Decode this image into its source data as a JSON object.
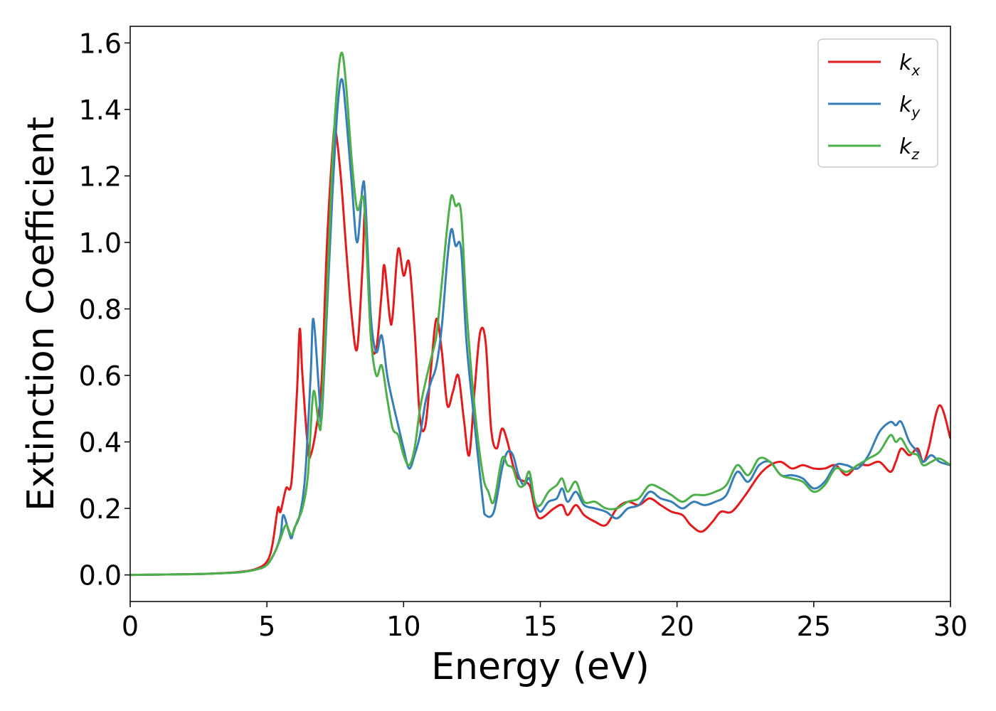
{
  "chart_data": {
    "type": "line",
    "xlabel": "Energy (eV)",
    "ylabel": "Extinction Coefficient",
    "xlim": [
      0,
      30
    ],
    "ylim": [
      -0.08,
      1.65
    ],
    "xticks": [
      0,
      5,
      10,
      15,
      20,
      25,
      30
    ],
    "xtick_labels": [
      "0",
      "5",
      "10",
      "15",
      "20",
      "25",
      "30"
    ],
    "yticks": [
      0.0,
      0.2,
      0.4,
      0.6,
      0.8,
      1.0,
      1.2,
      1.4,
      1.6
    ],
    "ytick_labels": [
      "0.0",
      "0.2",
      "0.4",
      "0.6",
      "0.8",
      "1.0",
      "1.2",
      "1.4",
      "1.6"
    ],
    "grid": false,
    "legend_position": "top-right",
    "series": [
      {
        "name": "k_x",
        "legend_base": "k",
        "legend_sub": "x",
        "color": "#e41a1c",
        "points": [
          [
            0,
            0.0
          ],
          [
            2,
            0.002
          ],
          [
            3,
            0.004
          ],
          [
            4,
            0.009
          ],
          [
            4.6,
            0.018
          ],
          [
            5.0,
            0.04
          ],
          [
            5.2,
            0.09
          ],
          [
            5.4,
            0.2
          ],
          [
            5.5,
            0.19
          ],
          [
            5.7,
            0.26
          ],
          [
            5.9,
            0.28
          ],
          [
            6.1,
            0.55
          ],
          [
            6.2,
            0.74
          ],
          [
            6.3,
            0.6
          ],
          [
            6.5,
            0.38
          ],
          [
            6.6,
            0.36
          ],
          [
            6.8,
            0.44
          ],
          [
            7.0,
            0.58
          ],
          [
            7.2,
            1.0
          ],
          [
            7.4,
            1.28
          ],
          [
            7.5,
            1.34
          ],
          [
            7.7,
            1.2
          ],
          [
            7.9,
            0.98
          ],
          [
            8.1,
            0.78
          ],
          [
            8.3,
            0.68
          ],
          [
            8.5,
            0.93
          ],
          [
            8.6,
            1.09
          ],
          [
            8.8,
            0.72
          ],
          [
            9.0,
            0.68
          ],
          [
            9.2,
            0.85
          ],
          [
            9.3,
            0.93
          ],
          [
            9.5,
            0.77
          ],
          [
            9.6,
            0.78
          ],
          [
            9.8,
            0.98
          ],
          [
            10.0,
            0.9
          ],
          [
            10.2,
            0.94
          ],
          [
            10.4,
            0.74
          ],
          [
            10.6,
            0.47
          ],
          [
            10.8,
            0.45
          ],
          [
            11.0,
            0.62
          ],
          [
            11.2,
            0.77
          ],
          [
            11.4,
            0.67
          ],
          [
            11.6,
            0.51
          ],
          [
            11.8,
            0.55
          ],
          [
            12.0,
            0.6
          ],
          [
            12.2,
            0.47
          ],
          [
            12.4,
            0.36
          ],
          [
            12.6,
            0.56
          ],
          [
            12.8,
            0.73
          ],
          [
            13.0,
            0.7
          ],
          [
            13.2,
            0.44
          ],
          [
            13.4,
            0.38
          ],
          [
            13.6,
            0.44
          ],
          [
            13.8,
            0.4
          ],
          [
            14.0,
            0.33
          ],
          [
            14.2,
            0.29
          ],
          [
            14.6,
            0.27
          ],
          [
            14.8,
            0.2
          ],
          [
            15.0,
            0.17
          ],
          [
            15.5,
            0.2
          ],
          [
            15.8,
            0.21
          ],
          [
            16.0,
            0.18
          ],
          [
            16.3,
            0.21
          ],
          [
            16.6,
            0.18
          ],
          [
            17.0,
            0.16
          ],
          [
            17.4,
            0.15
          ],
          [
            17.8,
            0.2
          ],
          [
            18.2,
            0.22
          ],
          [
            18.6,
            0.21
          ],
          [
            19.0,
            0.23
          ],
          [
            19.4,
            0.21
          ],
          [
            19.8,
            0.19
          ],
          [
            20.2,
            0.18
          ],
          [
            20.5,
            0.15
          ],
          [
            20.9,
            0.13
          ],
          [
            21.3,
            0.16
          ],
          [
            21.6,
            0.19
          ],
          [
            22.0,
            0.19
          ],
          [
            22.5,
            0.24
          ],
          [
            23.0,
            0.3
          ],
          [
            23.4,
            0.33
          ],
          [
            23.8,
            0.34
          ],
          [
            24.2,
            0.32
          ],
          [
            24.6,
            0.33
          ],
          [
            25.0,
            0.32
          ],
          [
            25.4,
            0.32
          ],
          [
            25.8,
            0.33
          ],
          [
            26.2,
            0.3
          ],
          [
            26.6,
            0.33
          ],
          [
            27.0,
            0.33
          ],
          [
            27.4,
            0.34
          ],
          [
            27.8,
            0.31
          ],
          [
            28.0,
            0.34
          ],
          [
            28.2,
            0.38
          ],
          [
            28.5,
            0.36
          ],
          [
            28.8,
            0.38
          ],
          [
            29.0,
            0.34
          ],
          [
            29.2,
            0.38
          ],
          [
            29.6,
            0.51
          ],
          [
            30.0,
            0.41
          ]
        ]
      },
      {
        "name": "k_y",
        "legend_base": "k",
        "legend_sub": "y",
        "color": "#377eb8",
        "points": [
          [
            0,
            0.0
          ],
          [
            2,
            0.002
          ],
          [
            3,
            0.004
          ],
          [
            4,
            0.008
          ],
          [
            4.6,
            0.016
          ],
          [
            5.0,
            0.03
          ],
          [
            5.3,
            0.07
          ],
          [
            5.5,
            0.12
          ],
          [
            5.6,
            0.18
          ],
          [
            5.8,
            0.13
          ],
          [
            5.9,
            0.11
          ],
          [
            6.0,
            0.14
          ],
          [
            6.2,
            0.18
          ],
          [
            6.4,
            0.3
          ],
          [
            6.6,
            0.6
          ],
          [
            6.7,
            0.77
          ],
          [
            6.9,
            0.56
          ],
          [
            7.0,
            0.47
          ],
          [
            7.2,
            0.8
          ],
          [
            7.4,
            1.15
          ],
          [
            7.6,
            1.42
          ],
          [
            7.75,
            1.49
          ],
          [
            7.9,
            1.38
          ],
          [
            8.1,
            1.18
          ],
          [
            8.3,
            1.0
          ],
          [
            8.5,
            1.17
          ],
          [
            8.6,
            1.13
          ],
          [
            8.8,
            0.78
          ],
          [
            9.0,
            0.67
          ],
          [
            9.2,
            0.72
          ],
          [
            9.4,
            0.6
          ],
          [
            9.6,
            0.52
          ],
          [
            9.8,
            0.45
          ],
          [
            10.0,
            0.38
          ],
          [
            10.2,
            0.32
          ],
          [
            10.4,
            0.36
          ],
          [
            10.6,
            0.42
          ],
          [
            10.8,
            0.52
          ],
          [
            11.0,
            0.58
          ],
          [
            11.2,
            0.63
          ],
          [
            11.4,
            0.75
          ],
          [
            11.6,
            0.95
          ],
          [
            11.75,
            1.04
          ],
          [
            11.9,
            0.99
          ],
          [
            12.1,
            0.98
          ],
          [
            12.3,
            0.7
          ],
          [
            12.6,
            0.45
          ],
          [
            12.9,
            0.22
          ],
          [
            13.0,
            0.18
          ],
          [
            13.3,
            0.19
          ],
          [
            13.6,
            0.32
          ],
          [
            13.8,
            0.37
          ],
          [
            14.0,
            0.36
          ],
          [
            14.2,
            0.3
          ],
          [
            14.4,
            0.27
          ],
          [
            14.6,
            0.29
          ],
          [
            14.8,
            0.22
          ],
          [
            15.0,
            0.19
          ],
          [
            15.3,
            0.22
          ],
          [
            15.6,
            0.23
          ],
          [
            15.8,
            0.26
          ],
          [
            16.0,
            0.22
          ],
          [
            16.3,
            0.25
          ],
          [
            16.6,
            0.21
          ],
          [
            17.0,
            0.2
          ],
          [
            17.4,
            0.19
          ],
          [
            17.8,
            0.17
          ],
          [
            18.2,
            0.2
          ],
          [
            18.6,
            0.21
          ],
          [
            19.0,
            0.25
          ],
          [
            19.4,
            0.23
          ],
          [
            19.8,
            0.22
          ],
          [
            20.2,
            0.2
          ],
          [
            20.6,
            0.22
          ],
          [
            21.0,
            0.21
          ],
          [
            21.4,
            0.22
          ],
          [
            21.8,
            0.24
          ],
          [
            22.2,
            0.31
          ],
          [
            22.6,
            0.28
          ],
          [
            23.0,
            0.33
          ],
          [
            23.4,
            0.34
          ],
          [
            23.8,
            0.3
          ],
          [
            24.2,
            0.3
          ],
          [
            24.6,
            0.29
          ],
          [
            25.0,
            0.26
          ],
          [
            25.4,
            0.28
          ],
          [
            25.8,
            0.33
          ],
          [
            26.2,
            0.33
          ],
          [
            26.6,
            0.32
          ],
          [
            27.0,
            0.36
          ],
          [
            27.4,
            0.43
          ],
          [
            27.8,
            0.46
          ],
          [
            28.0,
            0.45
          ],
          [
            28.2,
            0.46
          ],
          [
            28.5,
            0.4
          ],
          [
            28.8,
            0.37
          ],
          [
            29.0,
            0.34
          ],
          [
            29.3,
            0.36
          ],
          [
            29.6,
            0.34
          ],
          [
            30.0,
            0.33
          ]
        ]
      },
      {
        "name": "k_z",
        "legend_base": "k",
        "legend_sub": "z",
        "color": "#4daf4a",
        "points": [
          [
            0,
            0.0
          ],
          [
            2,
            0.002
          ],
          [
            3,
            0.004
          ],
          [
            4,
            0.008
          ],
          [
            4.6,
            0.016
          ],
          [
            5.0,
            0.03
          ],
          [
            5.3,
            0.07
          ],
          [
            5.5,
            0.11
          ],
          [
            5.7,
            0.15
          ],
          [
            5.9,
            0.12
          ],
          [
            6.1,
            0.16
          ],
          [
            6.3,
            0.2
          ],
          [
            6.5,
            0.3
          ],
          [
            6.7,
            0.55
          ],
          [
            6.9,
            0.45
          ],
          [
            7.0,
            0.48
          ],
          [
            7.2,
            0.85
          ],
          [
            7.4,
            1.25
          ],
          [
            7.6,
            1.5
          ],
          [
            7.75,
            1.57
          ],
          [
            7.9,
            1.47
          ],
          [
            8.1,
            1.25
          ],
          [
            8.3,
            1.1
          ],
          [
            8.5,
            1.14
          ],
          [
            8.6,
            1.06
          ],
          [
            8.8,
            0.72
          ],
          [
            9.0,
            0.6
          ],
          [
            9.2,
            0.63
          ],
          [
            9.4,
            0.53
          ],
          [
            9.6,
            0.44
          ],
          [
            9.8,
            0.42
          ],
          [
            10.0,
            0.36
          ],
          [
            10.2,
            0.33
          ],
          [
            10.4,
            0.38
          ],
          [
            10.6,
            0.5
          ],
          [
            10.8,
            0.58
          ],
          [
            11.0,
            0.65
          ],
          [
            11.2,
            0.72
          ],
          [
            11.4,
            0.88
          ],
          [
            11.6,
            1.05
          ],
          [
            11.75,
            1.14
          ],
          [
            11.9,
            1.11
          ],
          [
            12.1,
            1.09
          ],
          [
            12.3,
            0.8
          ],
          [
            12.6,
            0.5
          ],
          [
            12.9,
            0.3
          ],
          [
            13.1,
            0.25
          ],
          [
            13.3,
            0.22
          ],
          [
            13.6,
            0.35
          ],
          [
            13.8,
            0.33
          ],
          [
            14.0,
            0.32
          ],
          [
            14.2,
            0.27
          ],
          [
            14.4,
            0.27
          ],
          [
            14.6,
            0.31
          ],
          [
            14.8,
            0.22
          ],
          [
            15.0,
            0.21
          ],
          [
            15.3,
            0.25
          ],
          [
            15.6,
            0.27
          ],
          [
            15.8,
            0.29
          ],
          [
            16.0,
            0.25
          ],
          [
            16.3,
            0.28
          ],
          [
            16.6,
            0.22
          ],
          [
            17.0,
            0.22
          ],
          [
            17.4,
            0.2
          ],
          [
            17.8,
            0.2
          ],
          [
            18.2,
            0.22
          ],
          [
            18.6,
            0.23
          ],
          [
            19.0,
            0.27
          ],
          [
            19.4,
            0.26
          ],
          [
            19.8,
            0.24
          ],
          [
            20.2,
            0.22
          ],
          [
            20.6,
            0.24
          ],
          [
            21.0,
            0.24
          ],
          [
            21.4,
            0.25
          ],
          [
            21.8,
            0.27
          ],
          [
            22.2,
            0.33
          ],
          [
            22.6,
            0.3
          ],
          [
            23.0,
            0.35
          ],
          [
            23.4,
            0.34
          ],
          [
            23.8,
            0.3
          ],
          [
            24.2,
            0.29
          ],
          [
            24.6,
            0.28
          ],
          [
            25.0,
            0.25
          ],
          [
            25.4,
            0.27
          ],
          [
            25.8,
            0.32
          ],
          [
            26.2,
            0.31
          ],
          [
            26.6,
            0.33
          ],
          [
            27.0,
            0.35
          ],
          [
            27.4,
            0.37
          ],
          [
            27.8,
            0.42
          ],
          [
            28.0,
            0.4
          ],
          [
            28.2,
            0.41
          ],
          [
            28.5,
            0.37
          ],
          [
            28.8,
            0.36
          ],
          [
            29.0,
            0.33
          ],
          [
            29.3,
            0.34
          ],
          [
            29.6,
            0.35
          ],
          [
            30.0,
            0.33
          ]
        ]
      }
    ]
  }
}
